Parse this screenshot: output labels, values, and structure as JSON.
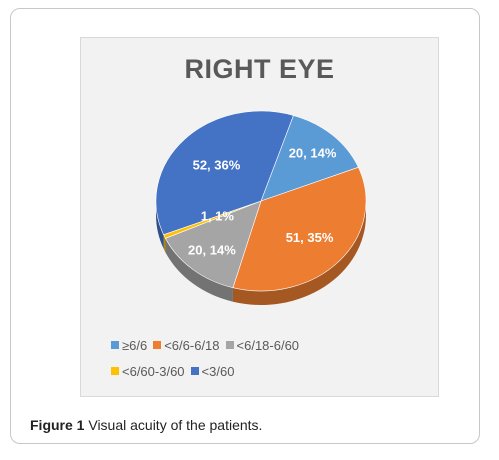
{
  "figure": {
    "caption_label": "Figure 1",
    "caption_text": " Visual acuity of the patients."
  },
  "chart_data": {
    "type": "pie",
    "title": "RIGHT EYE",
    "slices": [
      {
        "name": "≥6/6",
        "value": 20,
        "percent": 14,
        "label": "20, 14%",
        "color": "#5b9bd5"
      },
      {
        "name": "<6/6-6/18",
        "value": 51,
        "percent": 35,
        "label": "51, 35%",
        "color": "#ed7d31"
      },
      {
        "name": "<6/18-6/60",
        "value": 20,
        "percent": 14,
        "label": "20, 14%",
        "color": "#a5a5a5"
      },
      {
        "name": "<6/60-3/60",
        "value": 1,
        "percent": 1,
        "label": "1, 1%",
        "color": "#ffc000"
      },
      {
        "name": "<3/60",
        "value": 52,
        "percent": 36,
        "label": "52, 36%",
        "color": "#4472c4"
      }
    ],
    "legend_position": "bottom"
  }
}
